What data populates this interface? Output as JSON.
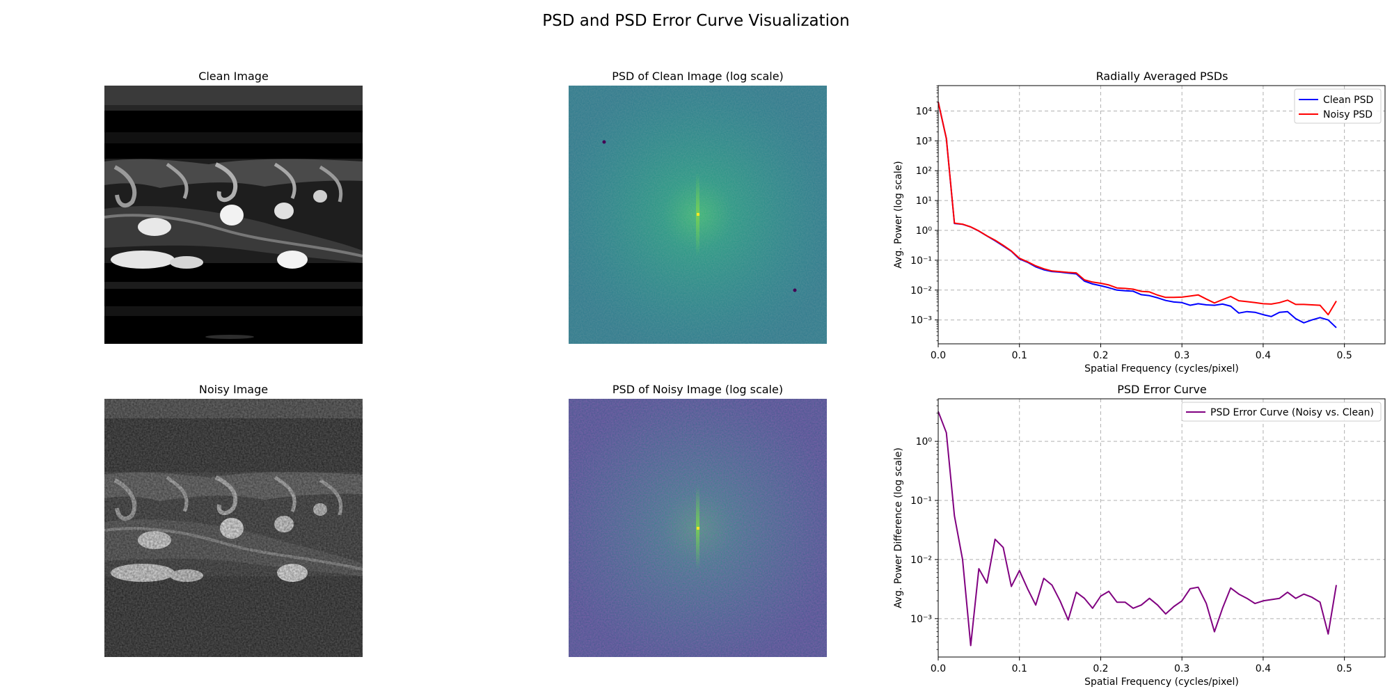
{
  "figure": {
    "title": "PSD and PSD Error Curve Visualization"
  },
  "panels": {
    "clean_image": {
      "title": "Clean Image"
    },
    "clean_psd": {
      "title": "PSD of Clean Image (log scale)"
    },
    "noisy_image": {
      "title": "Noisy Image"
    },
    "noisy_psd": {
      "title": "PSD of Noisy Image (log scale)"
    }
  },
  "colors": {
    "clean": "#0000ff",
    "noisy": "#ff0000",
    "error": "#800080",
    "grid": "#b0b0b0",
    "viridis_dark": "#3b528b",
    "viridis_mid": "#21918c",
    "viridis_peak": "#fde725"
  },
  "chart_data": [
    {
      "type": "line",
      "title": "Radially Averaged PSDs",
      "xlabel": "Spatial Frequency (cycles/pixel)",
      "ylabel": "Avg. Power (log scale)",
      "xlim": [
        0,
        0.55
      ],
      "ylim_log10": [
        -3.8,
        4.85
      ],
      "yscale": "log",
      "grid": true,
      "legend": "top-right",
      "xticks": [
        0.0,
        0.1,
        0.2,
        0.3,
        0.4,
        0.5
      ],
      "xtick_labels": [
        "0.0",
        "0.1",
        "0.2",
        "0.3",
        "0.4",
        "0.5"
      ],
      "ytick_exponents": [
        -3,
        -2,
        -1,
        0,
        1,
        2,
        3,
        4
      ],
      "x": [
        0.0,
        0.01,
        0.02,
        0.03,
        0.04,
        0.05,
        0.06,
        0.07,
        0.08,
        0.09,
        0.1,
        0.11,
        0.12,
        0.13,
        0.14,
        0.15,
        0.16,
        0.17,
        0.18,
        0.19,
        0.2,
        0.21,
        0.22,
        0.23,
        0.24,
        0.25,
        0.26,
        0.27,
        0.28,
        0.29,
        0.3,
        0.31,
        0.32,
        0.33,
        0.34,
        0.35,
        0.36,
        0.37,
        0.38,
        0.39,
        0.4,
        0.41,
        0.42,
        0.43,
        0.44,
        0.45,
        0.46,
        0.47,
        0.48,
        0.49
      ],
      "series": [
        {
          "name": "Clean PSD",
          "color": "#0000ff",
          "values": [
            20000,
            1200,
            1.7,
            1.6,
            1.3,
            0.95,
            0.65,
            0.45,
            0.3,
            0.2,
            0.11,
            0.085,
            0.06,
            0.048,
            0.042,
            0.04,
            0.037,
            0.035,
            0.02,
            0.016,
            0.014,
            0.012,
            0.01,
            0.0095,
            0.0092,
            0.007,
            0.0065,
            0.0055,
            0.0045,
            0.004,
            0.0038,
            0.0031,
            0.0035,
            0.0032,
            0.0031,
            0.0034,
            0.0029,
            0.0017,
            0.0019,
            0.0018,
            0.0015,
            0.0013,
            0.0018,
            0.0019,
            0.0011,
            0.0008,
            0.001,
            0.0012,
            0.001,
            0.00055
          ]
        },
        {
          "name": "Noisy PSD",
          "color": "#ff0000",
          "values": [
            20000,
            1201,
            1.75,
            1.61,
            1.31,
            0.957,
            0.654,
            0.47,
            0.315,
            0.204,
            0.116,
            0.0882,
            0.0647,
            0.0518,
            0.0438,
            0.0415,
            0.039,
            0.0377,
            0.022,
            0.0185,
            0.0169,
            0.0149,
            0.0118,
            0.0114,
            0.0107,
            0.0091,
            0.0087,
            0.0068,
            0.0057,
            0.0057,
            0.0058,
            0.0063,
            0.0069,
            0.005,
            0.0037,
            0.0048,
            0.0061,
            0.0044,
            0.0041,
            0.0038,
            0.0035,
            0.0034,
            0.0038,
            0.0046,
            0.0033,
            0.0033,
            0.0032,
            0.0031,
            0.0015,
            0.0043
          ]
        }
      ]
    },
    {
      "type": "line",
      "title": "PSD Error Curve",
      "xlabel": "Spatial Frequency (cycles/pixel)",
      "ylabel": "Avg. Power Difference (log scale)",
      "xlim": [
        0,
        0.55
      ],
      "ylim_log10": [
        -3.65,
        0.72
      ],
      "yscale": "log",
      "grid": true,
      "legend": "top-right",
      "xticks": [
        0.0,
        0.1,
        0.2,
        0.3,
        0.4,
        0.5
      ],
      "xtick_labels": [
        "0.0",
        "0.1",
        "0.2",
        "0.3",
        "0.4",
        "0.5"
      ],
      "ytick_exponents": [
        -3,
        -2,
        -1,
        0
      ],
      "x": [
        0.0,
        0.01,
        0.02,
        0.03,
        0.04,
        0.05,
        0.06,
        0.07,
        0.08,
        0.09,
        0.1,
        0.11,
        0.12,
        0.13,
        0.14,
        0.15,
        0.16,
        0.17,
        0.18,
        0.19,
        0.2,
        0.21,
        0.22,
        0.23,
        0.24,
        0.25,
        0.26,
        0.27,
        0.28,
        0.29,
        0.3,
        0.31,
        0.32,
        0.33,
        0.34,
        0.35,
        0.36,
        0.37,
        0.38,
        0.39,
        0.4,
        0.41,
        0.42,
        0.43,
        0.44,
        0.45,
        0.46,
        0.47,
        0.48,
        0.49
      ],
      "series": [
        {
          "name": "PSD Error Curve (Noisy vs. Clean)",
          "color": "#800080",
          "values": [
            3.2,
            1.4,
            0.055,
            0.01,
            0.00035,
            0.007,
            0.004,
            0.022,
            0.016,
            0.0035,
            0.0065,
            0.0032,
            0.0017,
            0.0048,
            0.0037,
            0.002,
            0.00095,
            0.0028,
            0.0022,
            0.0015,
            0.0024,
            0.0029,
            0.0019,
            0.0019,
            0.0015,
            0.0017,
            0.0022,
            0.0017,
            0.0012,
            0.0016,
            0.002,
            0.0032,
            0.0034,
            0.0018,
            0.0006,
            0.0015,
            0.0033,
            0.0026,
            0.0022,
            0.0018,
            0.002,
            0.0021,
            0.0022,
            0.0028,
            0.0022,
            0.0026,
            0.0023,
            0.0019,
            0.00055,
            0.0037
          ]
        }
      ]
    }
  ]
}
